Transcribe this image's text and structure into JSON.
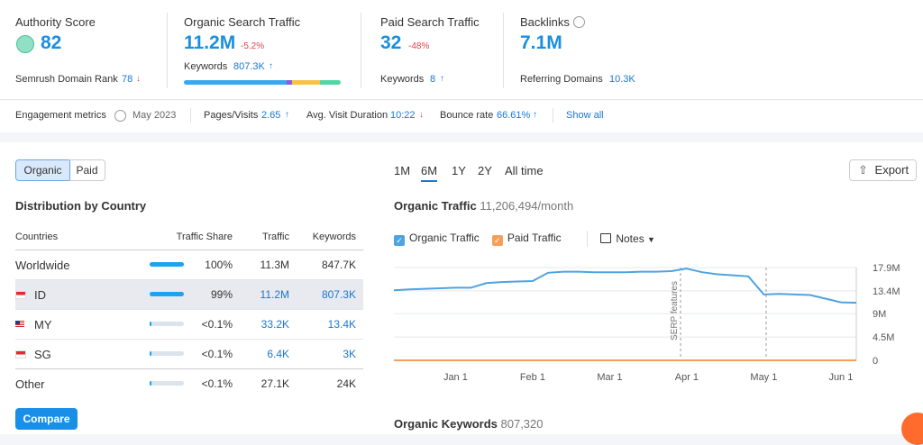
{
  "summary": {
    "authority": {
      "label": "Authority Score",
      "value": "82",
      "sub_label": "Semrush Domain Rank",
      "sub_value": "78"
    },
    "organic": {
      "label": "Organic Search Traffic",
      "value": "11.2M",
      "change": "-5.2%",
      "sub_label": "Keywords",
      "sub_value": "807.3K"
    },
    "paid": {
      "label": "Paid Search Traffic",
      "value": "32",
      "change": "-48%",
      "sub_label": "Keywords",
      "sub_value": "8"
    },
    "backlinks": {
      "label": "Backlinks",
      "value": "7.1M",
      "sub_label": "Referring Domains",
      "sub_value": "10.3K"
    }
  },
  "engagement": {
    "label": "Engagement metrics",
    "date": "May 2023",
    "items": [
      {
        "label": "Pages/Visits",
        "value": "2.65"
      },
      {
        "label": "Avg. Visit Duration",
        "value": "10:22"
      },
      {
        "label": "Bounce rate",
        "value": "66.61%"
      }
    ],
    "show_all": "Show all"
  },
  "tabs": [
    "Organic",
    "Paid"
  ],
  "distribution": {
    "title": "Distribution by Country",
    "columns": [
      "Countries",
      "Traffic Share",
      "Traffic",
      "Keywords"
    ],
    "rows": [
      [
        "Worldwide",
        "100%",
        "11.3M",
        "847.7K"
      ],
      [
        "ID",
        "99%",
        "11.2M",
        "807.3K"
      ],
      [
        "MY",
        "<0.1%",
        "33.2K",
        "13.4K"
      ],
      [
        "SG",
        "<0.1%",
        "6.4K",
        "3K"
      ],
      [
        "Other",
        "<0.1%",
        "27.1K",
        "24K"
      ]
    ],
    "button": "Compare"
  },
  "periods": [
    "1M",
    "6M",
    "1Y",
    "2Y",
    "All time"
  ],
  "export": "Export",
  "notes": "Notes",
  "keywords_section": {
    "title": "Organic Keywords",
    "value": "807,320"
  },
  "chart_data": {
    "type": "line",
    "title": "Organic Traffic",
    "subtitle": "11,206,494/month",
    "categories": [
      null,
      null,
      null,
      null,
      "Jan 1",
      null,
      null,
      null,
      null,
      "Feb 1",
      null,
      null,
      null,
      null,
      "Mar 1",
      null,
      null,
      null,
      null,
      "Apr 1",
      null,
      null,
      null,
      null,
      "May 1",
      null,
      null,
      null,
      null,
      "Jun 1",
      null
    ],
    "series": [
      {
        "name": "Organic Traffic",
        "color": "#4ea3e0",
        "values": [
          13500000,
          13700000,
          13800000,
          13900000,
          14000000,
          14000000,
          14900000,
          15100000,
          15200000,
          15300000,
          16900000,
          17100000,
          17100000,
          17000000,
          17000000,
          17000000,
          17100000,
          17100000,
          17200000,
          17700000,
          17000000,
          16600000,
          16400000,
          16200000,
          12700000,
          12800000,
          12700000,
          12600000,
          11900000,
          11200000,
          11100000
        ]
      },
      {
        "name": "Paid Traffic",
        "color": "#f5a05a",
        "values": [
          0,
          0,
          0,
          0,
          0,
          0,
          0,
          0,
          0,
          0,
          0,
          0,
          0,
          0,
          0,
          0,
          0,
          0,
          0,
          0,
          0,
          0,
          0,
          0,
          0,
          0,
          0,
          0,
          0,
          0,
          0
        ]
      }
    ],
    "ylim": [
      0,
      17900000
    ],
    "yticks": [
      {
        "value": 0,
        "label": "0"
      },
      {
        "value": 4500000,
        "label": "4.5M"
      },
      {
        "value": 9000000,
        "label": "9M"
      },
      {
        "value": 13400000,
        "label": "13.4M"
      },
      {
        "value": 17900000,
        "label": "17.9M"
      }
    ],
    "grid": true,
    "annotation": "SERP features"
  }
}
